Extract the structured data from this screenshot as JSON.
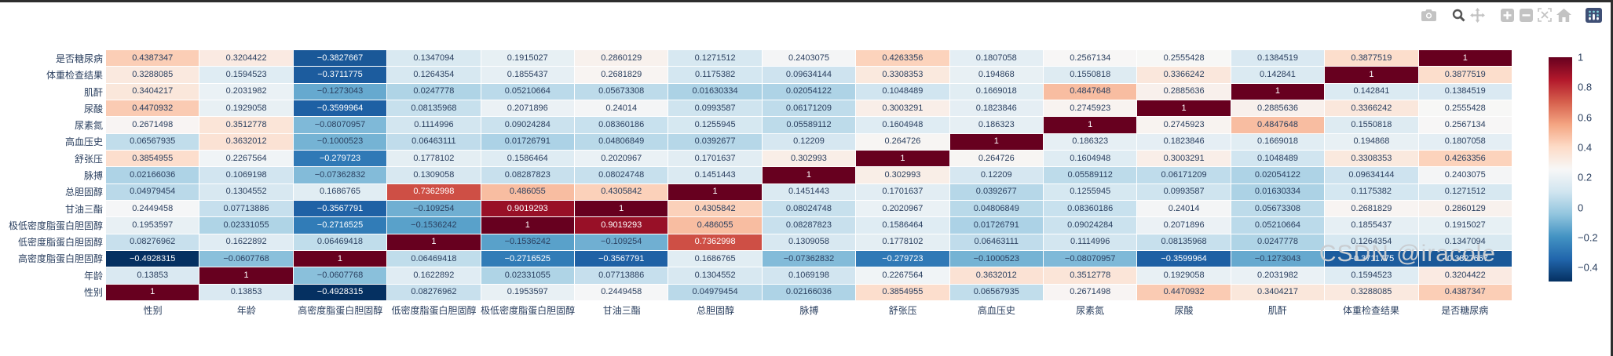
{
  "watermark": {
    "text": "CSDN @iracole"
  },
  "toolbar": {
    "icons": [
      {
        "name": "camera",
        "title": "download plot"
      },
      {
        "name": "zoom",
        "title": "zoom",
        "active": true
      },
      {
        "name": "pan",
        "title": "pan"
      },
      {
        "name": "zoom-in",
        "title": "zoom in"
      },
      {
        "name": "zoom-out",
        "title": "zoom out"
      },
      {
        "name": "autoscale",
        "title": "autoscale"
      },
      {
        "name": "home",
        "title": "reset axes"
      },
      {
        "name": "plotly-logo",
        "title": "produced with plotly"
      }
    ]
  },
  "colors": {
    "axis_label": "#2a3f5f",
    "cell_text_dark": "#2a3f5f",
    "cell_text_light": "#ffffff",
    "modebar_icon": "#c3c3c3",
    "modebar_icon_active": "#555555",
    "logo_bg": "#3f4f75",
    "watermark": "#c9cdd1"
  },
  "chart_data": {
    "type": "heatmap",
    "x_labels": [
      "性别",
      "年龄",
      "高密度脂蛋白胆固醇",
      "低密度脂蛋白胆固醇",
      "极低密度脂蛋白胆固醇",
      "甘油三酯",
      "总胆固醇",
      "脉搏",
      "舒张压",
      "高血压史",
      "尿素氮",
      "尿酸",
      "肌酐",
      "体重检查结果",
      "是否糖尿病"
    ],
    "y_labels": [
      "是否糖尿病",
      "体重检查结果",
      "肌酐",
      "尿酸",
      "尿素氮",
      "高血压史",
      "舒张压",
      "脉搏",
      "总胆固醇",
      "甘油三酯",
      "极低密度脂蛋白胆固醇",
      "低密度脂蛋白胆固醇",
      "高密度脂蛋白胆固醇",
      "年龄",
      "性别"
    ],
    "rows": [
      [
        "0.4387347",
        "0.3204422",
        "-0.3827667",
        "0.1347094",
        "0.1915027",
        "0.2860129",
        "0.1271512",
        "0.2403075",
        "0.4263356",
        "0.1807058",
        "0.2567134",
        "0.2555428",
        "0.1384519",
        "0.3877519",
        "1"
      ],
      [
        "0.3288085",
        "0.1594523",
        "-0.3711775",
        "0.1264354",
        "0.1855437",
        "0.2681829",
        "0.1175382",
        "0.09634144",
        "0.3308353",
        "0.194868",
        "0.1550818",
        "0.3366242",
        "0.142841",
        "1",
        "0.3877519"
      ],
      [
        "0.3404217",
        "0.2031982",
        "-0.1273043",
        "0.0247778",
        "0.05210664",
        "0.05673308",
        "0.01630334",
        "0.02054122",
        "0.1048489",
        "0.1669018",
        "0.4847648",
        "0.2885636",
        "1",
        "0.142841",
        "0.1384519"
      ],
      [
        "0.4470932",
        "0.1929058",
        "-0.3599964",
        "0.08135968",
        "0.2071896",
        "0.24014",
        "0.0993587",
        "0.06171209",
        "0.3003291",
        "0.1823846",
        "0.2745923",
        "1",
        "0.2885636",
        "0.3366242",
        "0.2555428"
      ],
      [
        "0.2671498",
        "0.3512778",
        "-0.08070957",
        "0.1114996",
        "0.09024284",
        "0.08360186",
        "0.1255945",
        "0.05589112",
        "0.1604948",
        "0.186323",
        "1",
        "0.2745923",
        "0.4847648",
        "0.1550818",
        "0.2567134"
      ],
      [
        "0.06567935",
        "0.3632012",
        "-0.1000523",
        "0.06463111",
        "0.01726791",
        "0.04806849",
        "0.0392677",
        "0.12209",
        "0.264726",
        "1",
        "0.186323",
        "0.1823846",
        "0.1669018",
        "0.194868",
        "0.1807058"
      ],
      [
        "0.3854955",
        "0.2267564",
        "-0.279723",
        "0.1778102",
        "0.1586464",
        "0.2020967",
        "0.1701637",
        "0.302993",
        "1",
        "0.264726",
        "0.1604948",
        "0.3003291",
        "0.1048489",
        "0.3308353",
        "0.4263356"
      ],
      [
        "0.02166036",
        "0.1069198",
        "-0.07362832",
        "0.1309058",
        "0.08287823",
        "0.08024748",
        "0.1451443",
        "1",
        "0.302993",
        "0.12209",
        "0.05589112",
        "0.06171209",
        "0.02054122",
        "0.09634144",
        "0.2403075"
      ],
      [
        "0.04979454",
        "0.1304552",
        "0.1686765",
        "0.7362998",
        "0.486055",
        "0.4305842",
        "1",
        "0.1451443",
        "0.1701637",
        "0.0392677",
        "0.1255945",
        "0.0993587",
        "0.01630334",
        "0.1175382",
        "0.1271512"
      ],
      [
        "0.2449458",
        "0.07713886",
        "-0.3567791",
        "-0.109254",
        "0.9019293",
        "1",
        "0.4305842",
        "0.08024748",
        "0.2020967",
        "0.04806849",
        "0.08360186",
        "0.24014",
        "0.05673308",
        "0.2681829",
        "0.2860129"
      ],
      [
        "0.1953597",
        "0.02331055",
        "-0.2716525",
        "-0.1536242",
        "1",
        "0.9019293",
        "0.486055",
        "0.08287823",
        "0.1586464",
        "0.01726791",
        "0.09024284",
        "0.2071896",
        "0.05210664",
        "0.1855437",
        "0.1915027"
      ],
      [
        "0.08276962",
        "0.1622892",
        "0.06469418",
        "1",
        "-0.1536242",
        "-0.109254",
        "0.7362998",
        "0.1309058",
        "0.1778102",
        "0.06463111",
        "0.1114996",
        "0.08135968",
        "0.0247778",
        "0.1264354",
        "0.1347094"
      ],
      [
        "-0.4928315",
        "-0.0607768",
        "1",
        "0.06469418",
        "-0.2716525",
        "-0.3567791",
        "0.1686765",
        "-0.07362832",
        "-0.279723",
        "-0.1000523",
        "-0.08070957",
        "-0.3599964",
        "-0.1273043",
        "-0.3711775",
        "-0.3827667"
      ],
      [
        "0.13853",
        "1",
        "-0.0607768",
        "0.1622892",
        "0.02331055",
        "0.07713886",
        "0.1304552",
        "0.1069198",
        "0.2267564",
        "0.3632012",
        "0.3512778",
        "0.1929058",
        "0.2031982",
        "0.1594523",
        "0.3204422"
      ],
      [
        "1",
        "0.13853",
        "-0.4928315",
        "0.08276962",
        "0.1953597",
        "0.2449458",
        "0.04979454",
        "0.02166036",
        "0.3854955",
        "0.06567935",
        "0.2671498",
        "0.4470932",
        "0.3404217",
        "0.3288085",
        "0.4387347"
      ]
    ],
    "zmin": -0.4928315,
    "zmax": 1,
    "colorscale_name": "RdBu reversed",
    "colorscale_stops_low_to_high": [
      "#053061",
      "#2166ac",
      "#4393c3",
      "#92c5de",
      "#d1e5f0",
      "#f7f7f7",
      "#fddbc7",
      "#f4a582",
      "#d6604d",
      "#b2182b",
      "#67001f"
    ],
    "colorbar_ticks": [
      "1",
      "0.8",
      "0.6",
      "0.4",
      "0.2",
      "0",
      "-0.2",
      "-0.4"
    ],
    "legend_position": "right",
    "grid": false
  }
}
